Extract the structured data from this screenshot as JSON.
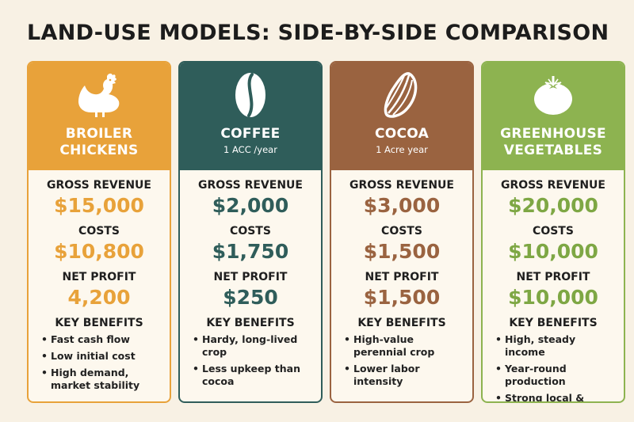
{
  "title": "LAND-USE MODELS: SIDE-BY-SIDE COMPARISON",
  "cards": [
    {
      "name_line1": "BROILER",
      "name_line2": "CHICKENS",
      "subtitle": "",
      "icon": "chicken-icon",
      "color": "#e8a23a",
      "value_color": "#e8a23a",
      "gross_revenue_label": "GROSS REVENUE",
      "gross_revenue": "$15,000",
      "costs_label": "COSTS",
      "costs": "$10,800",
      "net_profit_label": "NET PROFIT",
      "net_profit": "4,200",
      "benefits_label": "KEY BENEFITS",
      "benefits": [
        "Fast cash flow",
        "Low initial cost",
        "High demand, market stability"
      ]
    },
    {
      "name_line1": "COFFEE",
      "name_line2": "",
      "subtitle": "1 ACC /year",
      "icon": "coffee-bean-icon",
      "color": "#2f5d5a",
      "value_color": "#2f5d5a",
      "gross_revenue_label": "GROSS REVENUE",
      "gross_revenue": "$2,000",
      "costs_label": "COSTS",
      "costs": "$1,750",
      "net_profit_label": "NET PROFIT",
      "net_profit": "$250",
      "benefits_label": "KEY BENEFITS",
      "benefits": [
        "Hardy, long-lived crop",
        "Less upkeep than cocoa"
      ]
    },
    {
      "name_line1": "COCOA",
      "name_line2": "",
      "subtitle": "1 Acre year",
      "icon": "cocoa-pod-icon",
      "color": "#9a6340",
      "value_color": "#9a6340",
      "gross_revenue_label": "GROSS REVENUE",
      "gross_revenue": "$3,000",
      "costs_label": "COSTS",
      "costs": "$1,500",
      "net_profit_label": "NET PROFIT",
      "net_profit": "$1,500",
      "benefits_label": "KEY BENEFITS",
      "benefits": [
        "High-value perennial crop",
        "Lower labor intensity"
      ]
    },
    {
      "name_line1": "GREENHOUSE",
      "name_line2": "VEGETABLES",
      "subtitle": "",
      "icon": "tomato-icon",
      "color": "#8db350",
      "value_color": "#7ea744",
      "gross_revenue_label": "GROSS REVENUE",
      "gross_revenue": "$20,000",
      "costs_label": "COSTS",
      "costs": "$10,000",
      "net_profit_label": "NET PROFIT",
      "net_profit": "$10,000",
      "benefits_label": "KEY BENEFITS",
      "benefits": [
        "High, steady income",
        "Year-round production",
        "Strong local & export demand"
      ]
    }
  ]
}
